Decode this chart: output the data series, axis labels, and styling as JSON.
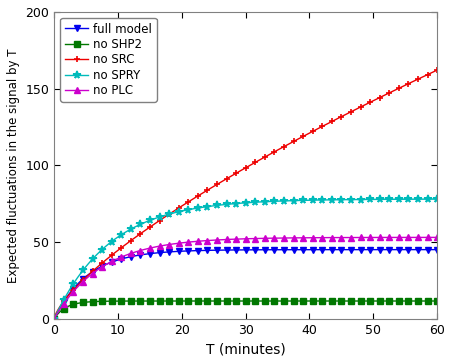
{
  "title": "",
  "xlabel": "T (minutes)",
  "ylabel": "Expected fluctuations in the signal by T",
  "xlim": [
    0,
    60
  ],
  "ylim": [
    0,
    200
  ],
  "xticks": [
    0,
    10,
    20,
    30,
    40,
    50,
    60
  ],
  "yticks": [
    0,
    50,
    100,
    150,
    200
  ],
  "series": [
    {
      "label": "full model",
      "color": "#0000EE",
      "marker": "v",
      "markersize": 4.5
    },
    {
      "label": "no SHP2",
      "color": "#007700",
      "marker": "s",
      "markersize": 4.5
    },
    {
      "label": "no SRC",
      "color": "#EE0000",
      "marker": "+",
      "markersize": 5
    },
    {
      "label": "no SPRY",
      "color": "#00BBBB",
      "marker": "*",
      "markersize": 5.5
    },
    {
      "label": "no PLC",
      "color": "#CC00CC",
      "marker": "^",
      "markersize": 4.5
    }
  ],
  "legend_loc": "upper left",
  "curve_params": {
    "full_model": {
      "scale": 45,
      "rate": 0.19
    },
    "no_shp2": {
      "scale": 11.5,
      "rate": 0.55
    },
    "no_src": {
      "a": 8.5,
      "b": 0.72
    },
    "no_spry": {
      "scale": 78,
      "rate": 0.115
    },
    "no_plc": {
      "scale": 53,
      "rate": 0.135
    }
  }
}
